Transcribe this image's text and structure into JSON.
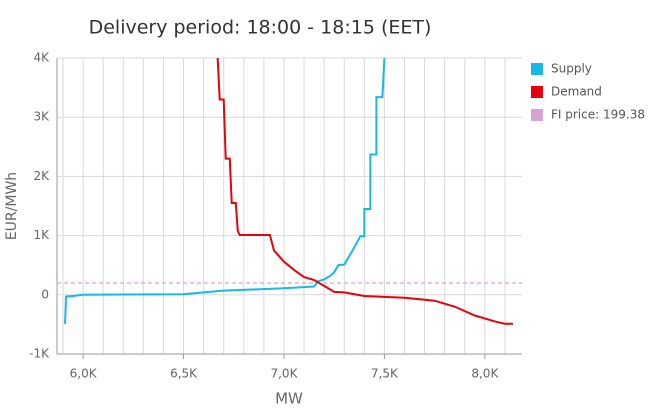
{
  "chart_data": {
    "type": "line",
    "title": "Delivery period: 18:00 - 18:15 (EET)",
    "x_label": "MW",
    "y_label": "EUR/MWh",
    "xlim": [
      5870,
      8185
    ],
    "ylim": [
      -1000,
      4000
    ],
    "xticks": [
      {
        "value": 6000,
        "label": "6,0K"
      },
      {
        "value": 6500,
        "label": "6,5K"
      },
      {
        "value": 7000,
        "label": "7,0K"
      },
      {
        "value": 7500,
        "label": "7,5K"
      },
      {
        "value": 8000,
        "label": "8,0K"
      }
    ],
    "x_minor_grid": [
      5900,
      6000,
      6100,
      6200,
      6300,
      6400,
      6500,
      6600,
      6700,
      6800,
      6900,
      7000,
      7100,
      7200,
      7300,
      7400,
      7500,
      7600,
      7700,
      7800,
      7900,
      8000,
      8100
    ],
    "yticks": [
      {
        "value": -1000,
        "label": "-1K"
      },
      0,
      {
        "value": 1000,
        "label": "1K"
      },
      {
        "value": 2000,
        "label": "2K"
      },
      {
        "value": 3000,
        "label": "3K"
      },
      {
        "value": 4000,
        "label": "4K"
      }
    ],
    "grid": true,
    "legend": "right",
    "series": [
      {
        "name": "Supply",
        "color": "#17b8e6",
        "x": [
          5910,
          5915,
          5950,
          6000,
          6500,
          6600,
          6700,
          7000,
          7100,
          7150,
          7170,
          7200,
          7230,
          7250,
          7270,
          7300,
          7350,
          7380,
          7400,
          7400,
          7430,
          7430,
          7460,
          7460,
          7490,
          7500
        ],
        "values": [
          -490,
          -30,
          -20,
          0,
          10,
          40,
          70,
          110,
          130,
          140,
          230,
          260,
          320,
          380,
          500,
          510,
          800,
          990,
          990,
          1450,
          1450,
          2370,
          2370,
          3340,
          3340,
          4000
        ]
      },
      {
        "name": "Demand",
        "color": "#e8000b",
        "x": [
          6670,
          6680,
          6700,
          6710,
          6730,
          6740,
          6760,
          6770,
          6780,
          6930,
          6950,
          7000,
          7050,
          7100,
          7150,
          7200,
          7250,
          7300,
          7400,
          7600,
          7750,
          7850,
          7950,
          8050,
          8100,
          8140
        ],
        "values": [
          4000,
          3300,
          3300,
          2300,
          2300,
          1550,
          1550,
          1080,
          1010,
          1010,
          750,
          560,
          420,
          300,
          250,
          150,
          50,
          40,
          -20,
          -50,
          -100,
          -200,
          -350,
          -450,
          -490,
          -490
        ]
      }
    ],
    "hline": {
      "name": "FI price: 199.38",
      "value": 199.38,
      "color": "#d7a3d3"
    }
  }
}
